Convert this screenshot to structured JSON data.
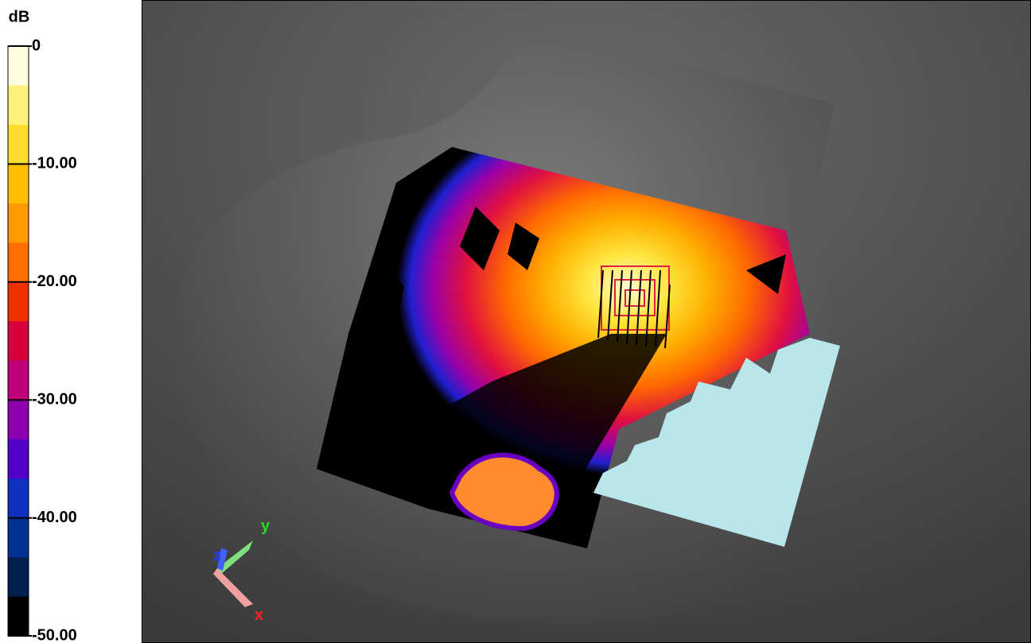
{
  "colorbar": {
    "unit": "dB",
    "range": [
      0,
      -50
    ],
    "ticks": [
      0,
      {
        "value": -10,
        "label": "-10.00"
      },
      {
        "value": -20,
        "label": "-20.00"
      },
      {
        "value": -30,
        "label": "-30.00"
      },
      {
        "value": -40,
        "label": "-40.00"
      },
      {
        "value": -50,
        "label": "-50.00"
      }
    ],
    "colors": [
      "#fffde0",
      "#fff27a",
      "#ffdd30",
      "#ffbf00",
      "#ff9900",
      "#ff7000",
      "#f03000",
      "#d8003c",
      "#c0007a",
      "#8c00b0",
      "#5000c8",
      "#1030c0",
      "#003090",
      "#002050",
      "#000000"
    ]
  },
  "axes_triad": {
    "x": "x",
    "y": "y",
    "z": "z"
  }
}
